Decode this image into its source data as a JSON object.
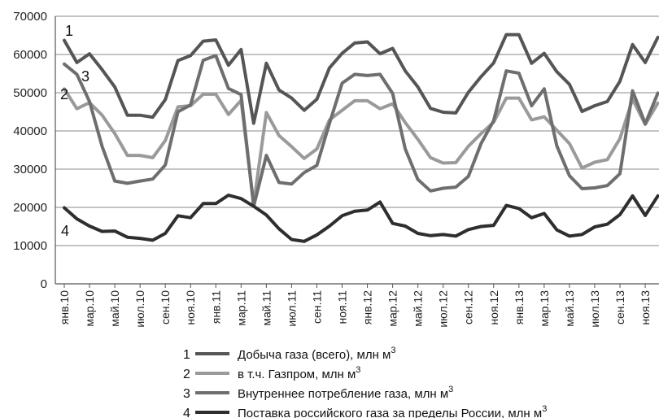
{
  "chart_data": {
    "type": "line",
    "title": "",
    "xlabel": "",
    "ylabel": "",
    "ylim": [
      0,
      70000
    ],
    "yticks": [
      0,
      10000,
      20000,
      30000,
      40000,
      50000,
      60000,
      70000
    ],
    "grid": "horizontal",
    "legend_position": "bottom",
    "categories": [
      "янв.10",
      "фев.10",
      "мар.10",
      "апр.10",
      "май.10",
      "июн.10",
      "июл.10",
      "авг.10",
      "сен.10",
      "окт.10",
      "ноя.10",
      "дек.10",
      "янв.11",
      "фев.11",
      "мар.11",
      "апр.11",
      "май.11",
      "июн.11",
      "июл.11",
      "авг.11",
      "сен.11",
      "окт.11",
      "ноя.11",
      "дек.11",
      "янв.12",
      "фев.12",
      "мар.12",
      "апр.12",
      "май.12",
      "июн.12",
      "июл.12",
      "авг.12",
      "сен.12",
      "окт.12",
      "ноя.12",
      "дек.12",
      "янв.13",
      "фев.13",
      "мар.13",
      "апр.13",
      "май.13",
      "июн.13",
      "июл.13",
      "авг.13",
      "сен.13",
      "окт.13",
      "ноя.13",
      "дек.13"
    ],
    "tick_labels": [
      "янв.10",
      "мар.10",
      "май.10",
      "июл.10",
      "сен.10",
      "ноя.10",
      "янв.11",
      "мар.11",
      "май.11",
      "июл.11",
      "сен.11",
      "ноя.11",
      "янв.12",
      "мар.12",
      "май.12",
      "июл.12",
      "сен.12",
      "ноя.12",
      "янв.13",
      "мар.13",
      "май.13",
      "июл.13",
      "сен.13",
      "ноя.13"
    ],
    "series": [
      {
        "id": "1",
        "name": "Добыча газа (всего), млн м",
        "color": "#555555",
        "values": [
          63700,
          57900,
          60200,
          56000,
          51500,
          44100,
          44100,
          43600,
          48200,
          58400,
          59700,
          63500,
          63800,
          57200,
          61300,
          42000,
          57700,
          50700,
          48600,
          45400,
          48300,
          56500,
          60300,
          63000,
          63300,
          60200,
          61600,
          55700,
          51500,
          45900,
          44900,
          44700,
          50100,
          54200,
          57800,
          65200,
          65200,
          57700,
          60300,
          55500,
          52200,
          45100,
          46600,
          47700,
          53000,
          62600,
          57900,
          64500
        ]
      },
      {
        "id": "2",
        "name": "в т.ч. Газпром, млн м",
        "color": "#9a9a9a",
        "values": [
          51000,
          45800,
          47400,
          44100,
          39300,
          33600,
          33600,
          33000,
          37500,
          46300,
          46600,
          49600,
          49600,
          44300,
          48000,
          20900,
          44800,
          38800,
          35900,
          32800,
          35300,
          42900,
          45400,
          47900,
          47900,
          45800,
          47100,
          42200,
          37800,
          33000,
          31600,
          31700,
          36000,
          39300,
          42300,
          48600,
          48600,
          42900,
          43700,
          40200,
          36700,
          30300,
          31800,
          32500,
          38000,
          48300,
          41700,
          47300
        ]
      },
      {
        "id": "3",
        "name": "Внутреннее потребление газа, млн м",
        "color": "#6e6e6e",
        "values": [
          57500,
          54800,
          47700,
          35900,
          26900,
          26300,
          26900,
          27400,
          31100,
          45000,
          46800,
          58500,
          59700,
          51100,
          49500,
          20300,
          33600,
          26500,
          26100,
          29100,
          31000,
          42000,
          52500,
          54800,
          54500,
          54800,
          49800,
          35300,
          27300,
          24300,
          25000,
          25300,
          28100,
          36700,
          42700,
          55700,
          55100,
          46600,
          51000,
          36100,
          28300,
          24900,
          25100,
          25700,
          28800,
          50500,
          41900,
          49900
        ]
      },
      {
        "id": "4",
        "name": "Поставка российского газа за пределы России, млн м",
        "color": "#2e2e2e",
        "values": [
          19900,
          17000,
          15100,
          13700,
          13800,
          12200,
          11900,
          11400,
          13200,
          17800,
          17300,
          21000,
          21000,
          23200,
          22300,
          20300,
          18000,
          14400,
          11600,
          11100,
          12800,
          15100,
          17800,
          19000,
          19300,
          21400,
          15800,
          15100,
          13200,
          12600,
          12900,
          12500,
          14200,
          15000,
          15300,
          20500,
          19700,
          17300,
          18400,
          14100,
          12500,
          12900,
          14900,
          15600,
          18100,
          23000,
          17900,
          23000
        ]
      }
    ],
    "series_labels": [
      "1",
      "2",
      "3",
      "4"
    ],
    "unit_superscript": "3"
  }
}
